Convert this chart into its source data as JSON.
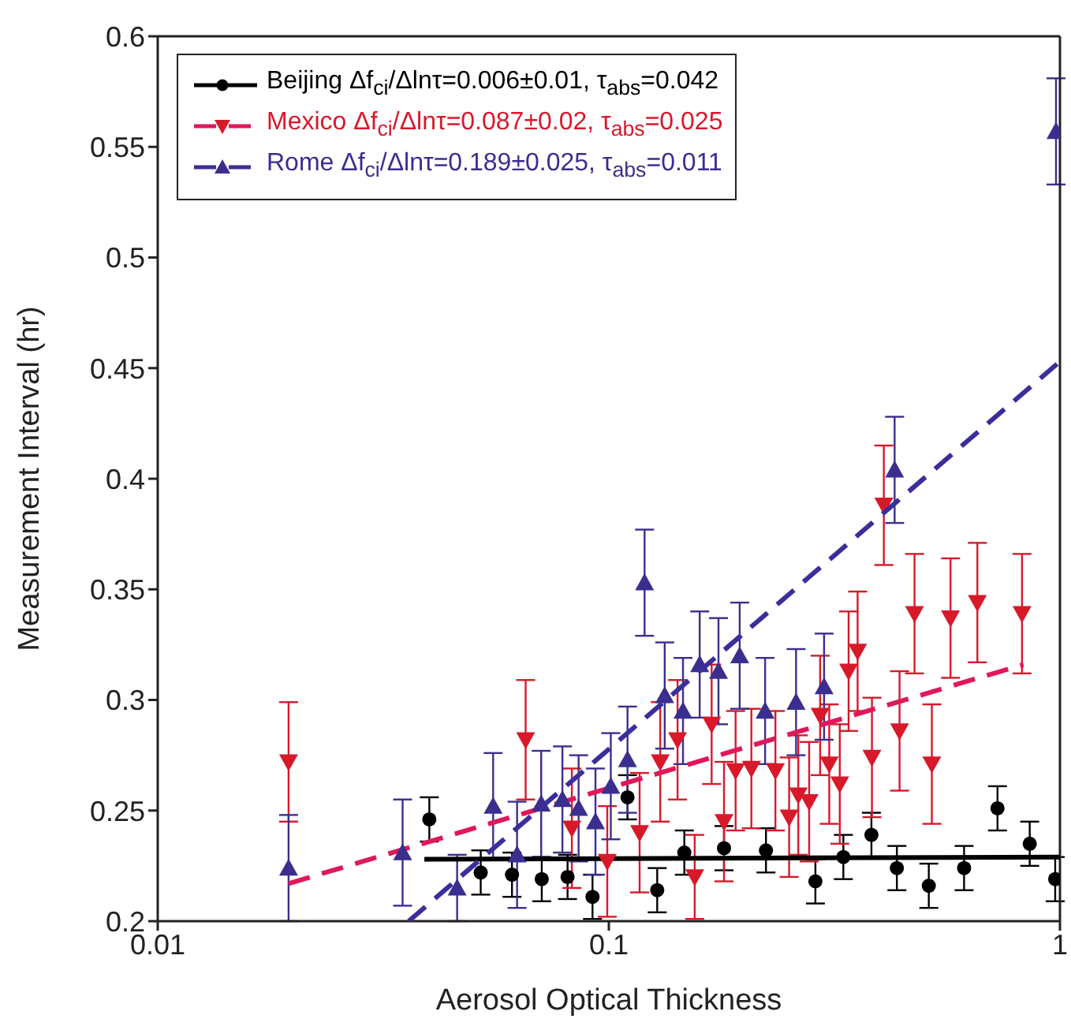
{
  "chart_data": {
    "type": "scatter",
    "xlabel": "Aerosol Optical Thickness",
    "ylabel": "Measurement Interval (hr)",
    "log": "x",
    "xlim": [
      0.01,
      1
    ],
    "xticks": [
      0.01,
      0.1,
      1
    ],
    "ylim": [
      0.2,
      0.6
    ],
    "yticks": [
      0.2,
      0.25,
      0.3,
      0.35,
      0.4,
      0.45,
      0.5,
      0.55,
      0.6
    ],
    "legend": "top left",
    "series": [
      {
        "name": "Beijing Δf$_{ci}$/Δlnτ=0.006±0.01, τ$_{abs}$=0.042",
        "marker": "circle",
        "color": "#000000",
        "x": [
          0.04,
          0.052,
          0.061,
          0.071,
          0.081,
          0.092,
          0.11,
          0.128,
          0.147,
          0.18,
          0.223,
          0.287,
          0.331,
          0.382,
          0.435,
          0.512,
          0.613,
          0.727,
          0.857,
          0.976
        ],
        "values": [
          0.246,
          0.222,
          0.221,
          0.219,
          0.22,
          0.211,
          0.256,
          0.214,
          0.231,
          0.233,
          0.232,
          0.218,
          0.229,
          0.239,
          0.224,
          0.216,
          0.224,
          0.251,
          0.235,
          0.219
        ],
        "errors": [
          0.01,
          0.01,
          0.01,
          0.01,
          0.01,
          0.01,
          0.01,
          0.01,
          0.01,
          0.01,
          0.01,
          0.01,
          0.01,
          0.01,
          0.01,
          0.01,
          0.01,
          0.01,
          0.01,
          0.01
        ]
      },
      {
        "type": "line",
        "line_style": "solid",
        "color": "#000000",
        "x": [
          0.039,
          1
        ],
        "values": [
          0.228,
          0.229
        ]
      },
      {
        "name": "Mexico Δf$_{ci}$/Δlnτ=0.087±0.02, τ$_{abs}$=0.025",
        "marker": "triangle_down",
        "color": "#d7192a",
        "x": [
          0.0195,
          0.0654,
          0.0828,
          0.0992,
          0.117,
          0.13,
          0.142,
          0.155,
          0.169,
          0.18,
          0.191,
          0.207,
          0.234,
          0.251,
          0.263,
          0.278,
          0.294,
          0.308,
          0.325,
          0.34,
          0.356,
          0.383,
          0.407,
          0.441,
          0.476,
          0.52,
          0.572,
          0.656,
          0.824
        ],
        "values": [
          0.272,
          0.282,
          0.242,
          0.227,
          0.24,
          0.272,
          0.282,
          0.22,
          0.289,
          0.245,
          0.268,
          0.269,
          0.268,
          0.247,
          0.257,
          0.254,
          0.293,
          0.271,
          0.262,
          0.313,
          0.322,
          0.274,
          0.388,
          0.286,
          0.339,
          0.271,
          0.337,
          0.344,
          0.339
        ],
        "errors": [
          0.027,
          0.027,
          0.027,
          0.025,
          0.027,
          0.027,
          0.027,
          0.019,
          0.027,
          0.027,
          0.027,
          0.027,
          0.027,
          0.027,
          0.027,
          0.027,
          0.027,
          0.027,
          0.027,
          0.027,
          0.027,
          0.027,
          0.027,
          0.027,
          0.027,
          0.027,
          0.027,
          0.027,
          0.027
        ]
      },
      {
        "type": "line",
        "line_style": "dashed",
        "color": "#e0185a",
        "x": [
          0.0195,
          0.83
        ],
        "values": [
          0.217,
          0.316
        ]
      },
      {
        "name": "Rome Δf$_{ci}$/Δlnτ=0.189±0.025, τ$_{abs}$=0.011",
        "marker": "triangle",
        "color": "#3a2f8f",
        "x": [
          0.0195,
          0.0349,
          0.0461,
          0.0554,
          0.0626,
          0.0708,
          0.0789,
          0.0857,
          0.0934,
          0.101,
          0.11,
          0.12,
          0.133,
          0.146,
          0.159,
          0.175,
          0.195,
          0.222,
          0.26,
          0.3,
          0.43,
          0.98
        ],
        "values": [
          0.224,
          0.231,
          0.215,
          0.252,
          0.23,
          0.253,
          0.255,
          0.251,
          0.245,
          0.261,
          0.273,
          0.353,
          0.302,
          0.295,
          0.316,
          0.313,
          0.32,
          0.295,
          0.299,
          0.306,
          0.404,
          0.557
        ],
        "errors": [
          0.024,
          0.024,
          0.015,
          0.024,
          0.024,
          0.024,
          0.024,
          0.024,
          0.024,
          0.024,
          0.024,
          0.024,
          0.024,
          0.024,
          0.024,
          0.024,
          0.024,
          0.024,
          0.024,
          0.024,
          0.024,
          0.024
        ]
      },
      {
        "type": "line",
        "line_style": "dashed",
        "color": "#3a2f9a",
        "x": [
          0.036,
          1
        ],
        "values": [
          0.2,
          0.453
        ]
      }
    ]
  }
}
